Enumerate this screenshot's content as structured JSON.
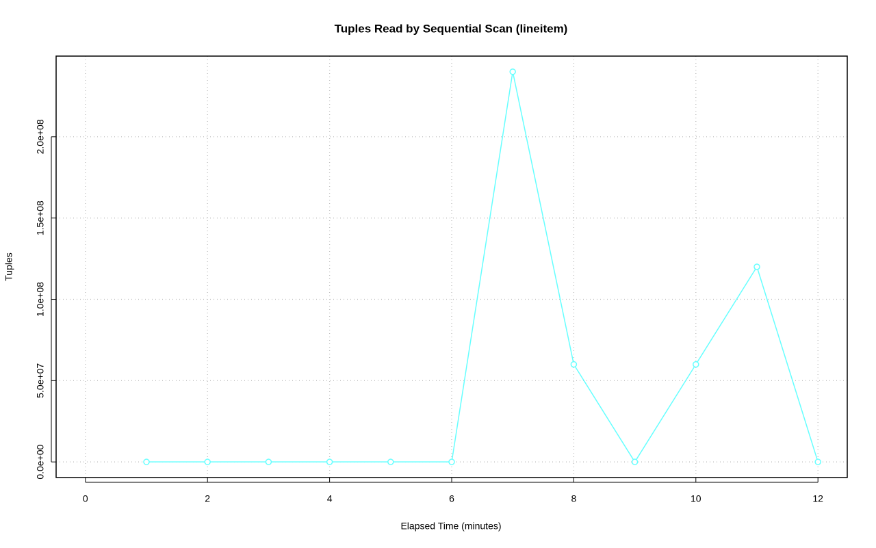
{
  "chart_data": {
    "type": "line",
    "title": "Tuples Read by Sequential Scan (lineitem)",
    "x_label": "Elapsed Time (minutes)",
    "y_label": "Tuples",
    "x": [
      1,
      2,
      3,
      4,
      5,
      6,
      7,
      8,
      9,
      10,
      11,
      12
    ],
    "series": [
      {
        "name": "lineitem",
        "color": "#66ffff",
        "values": [
          0,
          0,
          0,
          0,
          0,
          0,
          240000000,
          60000000,
          0,
          60000000,
          120000000,
          0
        ]
      }
    ],
    "xlim": [
      -0.48,
      12.48
    ],
    "xticks": [
      0,
      2,
      4,
      6,
      8,
      10,
      12
    ],
    "ylim": [
      -9600000,
      249600000
    ],
    "yticks": [
      {
        "value": 0,
        "label": "0.0e+00"
      },
      {
        "value": 50000000,
        "label": "5.0e+07"
      },
      {
        "value": 100000000,
        "label": "1.0e+08"
      },
      {
        "value": 150000000,
        "label": "1.5e+08"
      },
      {
        "value": 200000000,
        "label": "2.0e+08"
      }
    ],
    "grid": true
  }
}
